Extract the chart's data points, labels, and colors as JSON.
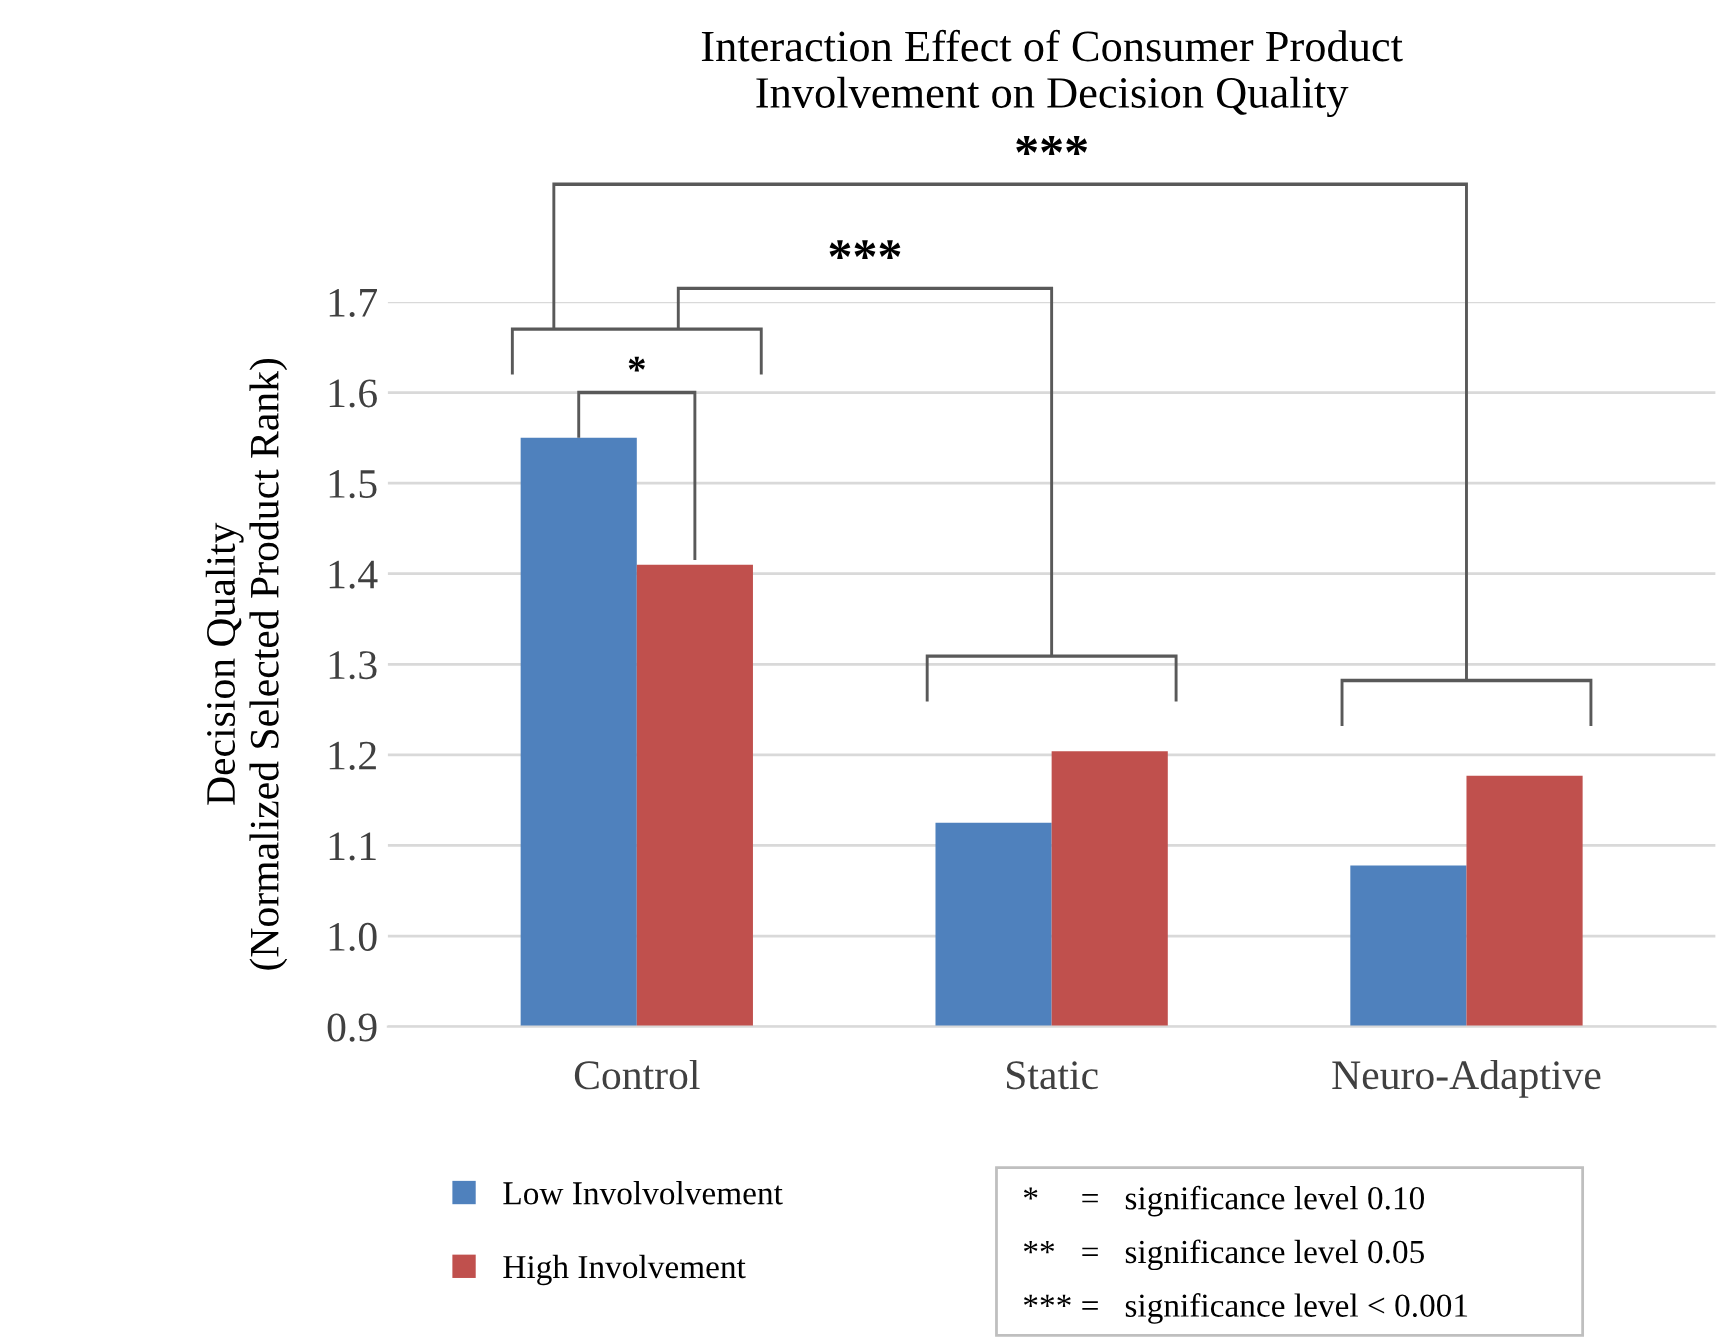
{
  "chart_data": {
    "type": "bar",
    "title": "Interaction Effect of Consumer Product\nInvolvement on Decision Quality",
    "ylabel": "Decision Quality\n(Normalized Selected Product Rank)",
    "categories": [
      "Control",
      "Static",
      "Neuro-Adaptive"
    ],
    "series": [
      {
        "name": "Low Involvolvement",
        "color": "#4f81bd",
        "values": [
          1.55,
          1.125,
          1.078
        ]
      },
      {
        "name": "High Involvement",
        "color": "#c0504d",
        "values": [
          1.41,
          1.204,
          1.177
        ]
      }
    ],
    "ylim": [
      0.9,
      1.7
    ],
    "yticks": [
      {
        "value": 0.9,
        "label": "0.9"
      },
      {
        "value": 1.0,
        "label": "1.0"
      },
      {
        "value": 1.1,
        "label": "1.1"
      },
      {
        "value": 1.2,
        "label": "1.2"
      },
      {
        "value": 1.3,
        "label": "1.3"
      },
      {
        "value": 1.4,
        "label": "1.4"
      },
      {
        "value": 1.5,
        "label": "1.5"
      },
      {
        "value": 1.6,
        "label": "1.6"
      },
      {
        "value": 1.7,
        "label": "1.7"
      }
    ],
    "grid": "y",
    "legend": "bottom left",
    "annotations": [
      "*",
      "***",
      "***",
      "*     =   significance level 0.10",
      "**   =   significance level 0.05",
      "*** =   significance level < 0.001"
    ]
  }
}
